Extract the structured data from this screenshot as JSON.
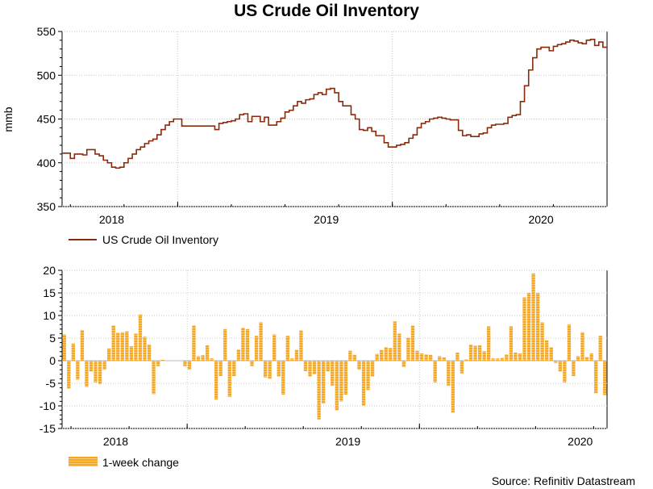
{
  "chart_data": [
    {
      "type": "line",
      "title": "US Crude Oil Inventory",
      "ylabel": "mmb",
      "xlabel": "",
      "ylim": [
        350,
        550
      ],
      "yticks": [
        "350",
        "400",
        "450",
        "500",
        "550"
      ],
      "xticks": [
        {
          "label": "2018",
          "week": 12
        },
        {
          "label": "2019",
          "week": 64
        },
        {
          "label": "2020",
          "week": 116
        }
      ],
      "year_boundaries": [
        28,
        80
      ],
      "grid": true,
      "legend": "US Crude Oil Inventory",
      "color": "#8b2a0a",
      "series": [
        {
          "name": "US Crude Oil Inventory",
          "values": [
            411,
            411,
            405,
            410,
            410,
            409,
            415,
            415,
            410,
            408,
            403,
            400,
            395,
            394,
            395,
            400,
            405,
            410,
            415,
            418,
            422,
            425,
            427,
            432,
            438,
            443,
            447,
            450,
            450,
            442,
            442,
            442,
            442,
            442,
            442,
            442,
            442,
            438,
            445,
            446,
            447,
            448,
            450,
            455,
            456,
            447,
            453,
            453,
            447,
            452,
            443,
            443,
            447,
            451,
            458,
            460,
            465,
            470,
            468,
            472,
            473,
            478,
            480,
            478,
            484,
            485,
            480,
            470,
            465,
            465,
            455,
            450,
            438,
            437,
            440,
            436,
            431,
            431,
            423,
            418,
            418,
            420,
            421,
            423,
            428,
            432,
            440,
            445,
            447,
            450,
            451,
            452,
            451,
            450,
            449,
            449,
            437,
            431,
            432,
            430,
            430,
            433,
            434,
            440,
            443,
            444,
            444,
            445,
            452,
            454,
            455,
            470,
            488,
            506,
            520,
            530,
            532,
            532,
            528,
            533,
            535,
            536,
            538,
            540,
            539,
            537,
            536,
            540,
            541,
            534,
            538,
            532
          ]
        }
      ]
    },
    {
      "type": "bar",
      "title": "",
      "ylabel": "",
      "xlabel": "",
      "ylim": [
        -15,
        20
      ],
      "yticks": [
        "-15",
        "-10",
        "-5",
        "0",
        "5",
        "10",
        "15",
        "20"
      ],
      "xticks": [
        {
          "label": "2018",
          "week": 12
        },
        {
          "label": "2019",
          "week": 64
        },
        {
          "label": "2020",
          "week": 116
        }
      ],
      "year_boundaries": [
        28,
        80
      ],
      "grid": true,
      "legend": "1-week change",
      "color": "#f5a623",
      "series": [
        {
          "name": "1-week change",
          "values": [
            5.8,
            -6.2,
            3.8,
            -4.2,
            6.8,
            -5.8,
            -2.4,
            -4.8,
            -5.2,
            -2.0,
            2.7,
            7.8,
            6.2,
            6.3,
            6.5,
            3.2,
            6.0,
            10.2,
            5.3,
            3.6,
            -7.4,
            -1.2,
            0.2,
            0,
            0,
            0,
            0,
            -1.2,
            -2.0,
            7.8,
            1.0,
            1.2,
            3.4,
            0.5,
            -8.6,
            -3.4,
            7.0,
            -8.0,
            -3.4,
            2.5,
            7.3,
            7.0,
            -1.2,
            5.5,
            8.5,
            -3.7,
            -4.0,
            5.8,
            -3.5,
            -7.5,
            5.5,
            0.5,
            2.4,
            6.7,
            -2.3,
            -3.5,
            -3.0,
            -13.0,
            -9.5,
            -2.4,
            -5.5,
            -11.0,
            -9.0,
            -7.5,
            2.2,
            1.3,
            -2.0,
            -10.0,
            -6.5,
            -3.5,
            1.5,
            2.4,
            3.0,
            2.8,
            8.7,
            6.0,
            -1.4,
            5.1,
            7.8,
            2.2,
            1.6,
            1.4,
            1.3,
            -4.8,
            1.0,
            0.7,
            -5.5,
            -11.5,
            1.8,
            -2.8,
            0.3,
            3.6,
            3.3,
            3.4,
            2.1,
            7.6,
            0.5,
            0.5,
            0.6,
            1.4,
            7.6,
            1.8,
            1.6,
            14.0,
            15.0,
            19.3,
            15.0,
            8.5,
            4.5,
            3.0,
            -0.5,
            -2.4,
            -4.8,
            8.0,
            -3.4,
            1.0,
            6.3,
            0.8,
            1.6,
            -7.2,
            5.5,
            -7.6
          ]
        }
      ]
    }
  ],
  "source": "Source: Refinitiv Datastream"
}
